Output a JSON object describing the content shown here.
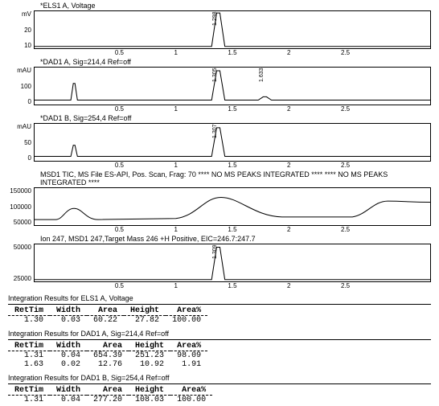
{
  "panels": [
    {
      "title": "*ELS1 A, Voltage",
      "yunit": "mV",
      "yticks": [
        "20",
        "10"
      ],
      "ylim": [
        0,
        30
      ],
      "xlim": [
        0,
        2.8
      ],
      "xticks": [
        "0.5",
        "1",
        "1.5",
        "2",
        "2.5"
      ],
      "peaks": [
        {
          "x": 1.3,
          "h": 0.95,
          "label": "1.298"
        }
      ],
      "baseline": 0.05
    },
    {
      "title": "*DAD1 A, Sig=214,4 Ref=off",
      "yunit": "mAU",
      "yticks": [
        "100",
        "0"
      ],
      "ylim": [
        -20,
        160
      ],
      "xlim": [
        0,
        2.8
      ],
      "xticks": [
        "0.5",
        "1",
        "1.5",
        "2",
        "2.5"
      ],
      "peaks": [
        {
          "x": 1.3,
          "h": 0.9,
          "label": "1.305"
        },
        {
          "x": 1.63,
          "h": 0.1,
          "label": "1.633"
        }
      ],
      "early_peaks": [
        {
          "x": 0.28,
          "h": 0.45
        }
      ],
      "baseline": 0.12
    },
    {
      "title": "*DAD1 B, Sig=254,4 Ref=off",
      "yunit": "mAU",
      "yticks": [
        "50",
        "0"
      ],
      "ylim": [
        -10,
        80
      ],
      "xlim": [
        0,
        2.8
      ],
      "xticks": [
        "0.5",
        "1",
        "1.5",
        "2",
        "2.5"
      ],
      "peaks": [
        {
          "x": 1.3,
          "h": 0.88,
          "label": "1.307"
        }
      ],
      "early_peaks": [
        {
          "x": 0.28,
          "h": 0.3
        }
      ],
      "baseline": 0.12
    },
    {
      "title": "MSD1 TIC, MS File    ES-API, Pos. Scan, Frag: 70 **** NO MS PEAKS INTEGRATED **** **** NO MS PEAKS INTEGRATED ****",
      "yunit": "",
      "yticks": [
        "150000",
        "100000",
        "50000"
      ],
      "ylim": [
        0,
        170000
      ],
      "xlim": [
        0,
        2.8
      ],
      "xticks": [
        "0.5",
        "1",
        "1.5",
        "2",
        "2.5"
      ],
      "broad_trace": true,
      "baseline": 0.1
    },
    {
      "title": "Ion 247, MSD1 247,Target Mass 246 +H Positive, EIC=246.7:247.7",
      "yunit": "",
      "yticks": [
        "50000",
        "25000"
      ],
      "ylim": [
        0,
        60000
      ],
      "xlim": [
        0,
        2.8
      ],
      "xticks": [
        "0.5",
        "1",
        "1.5",
        "2",
        "2.5"
      ],
      "peaks": [
        {
          "x": 1.3,
          "h": 0.92,
          "label": "1.309"
        }
      ],
      "baseline": 0.05
    }
  ],
  "tables": [
    {
      "title": "Integration Results for ELS1 A, Voltage",
      "headers": [
        "RetTim",
        "Width",
        "Area",
        "Height",
        "Area%"
      ],
      "rows": [
        [
          "1.30",
          "0.03",
          "60.22",
          "27.82",
          "100.00"
        ]
      ]
    },
    {
      "title": "Integration Results for DAD1 A, Sig=214,4 Ref=off",
      "headers": [
        "RetTim",
        "Width",
        "Area",
        "Height",
        "Area%"
      ],
      "rows": [
        [
          "1.31",
          "0.04",
          "654.39",
          "251.23",
          "98.09"
        ],
        [
          "1.63",
          "0.02",
          "12.76",
          "10.92",
          "1.91"
        ]
      ]
    },
    {
      "title": "Integration Results for DAD1 B, Sig=254,4 Ref=off",
      "headers": [
        "RetTim",
        "Width",
        "Area",
        "Height",
        "Area%"
      ],
      "rows": [
        [
          "1.31",
          "0.04",
          "277.20",
          "108.03",
          "100.00"
        ]
      ]
    }
  ],
  "colors": {
    "stroke": "#000000",
    "bg": "#ffffff"
  }
}
